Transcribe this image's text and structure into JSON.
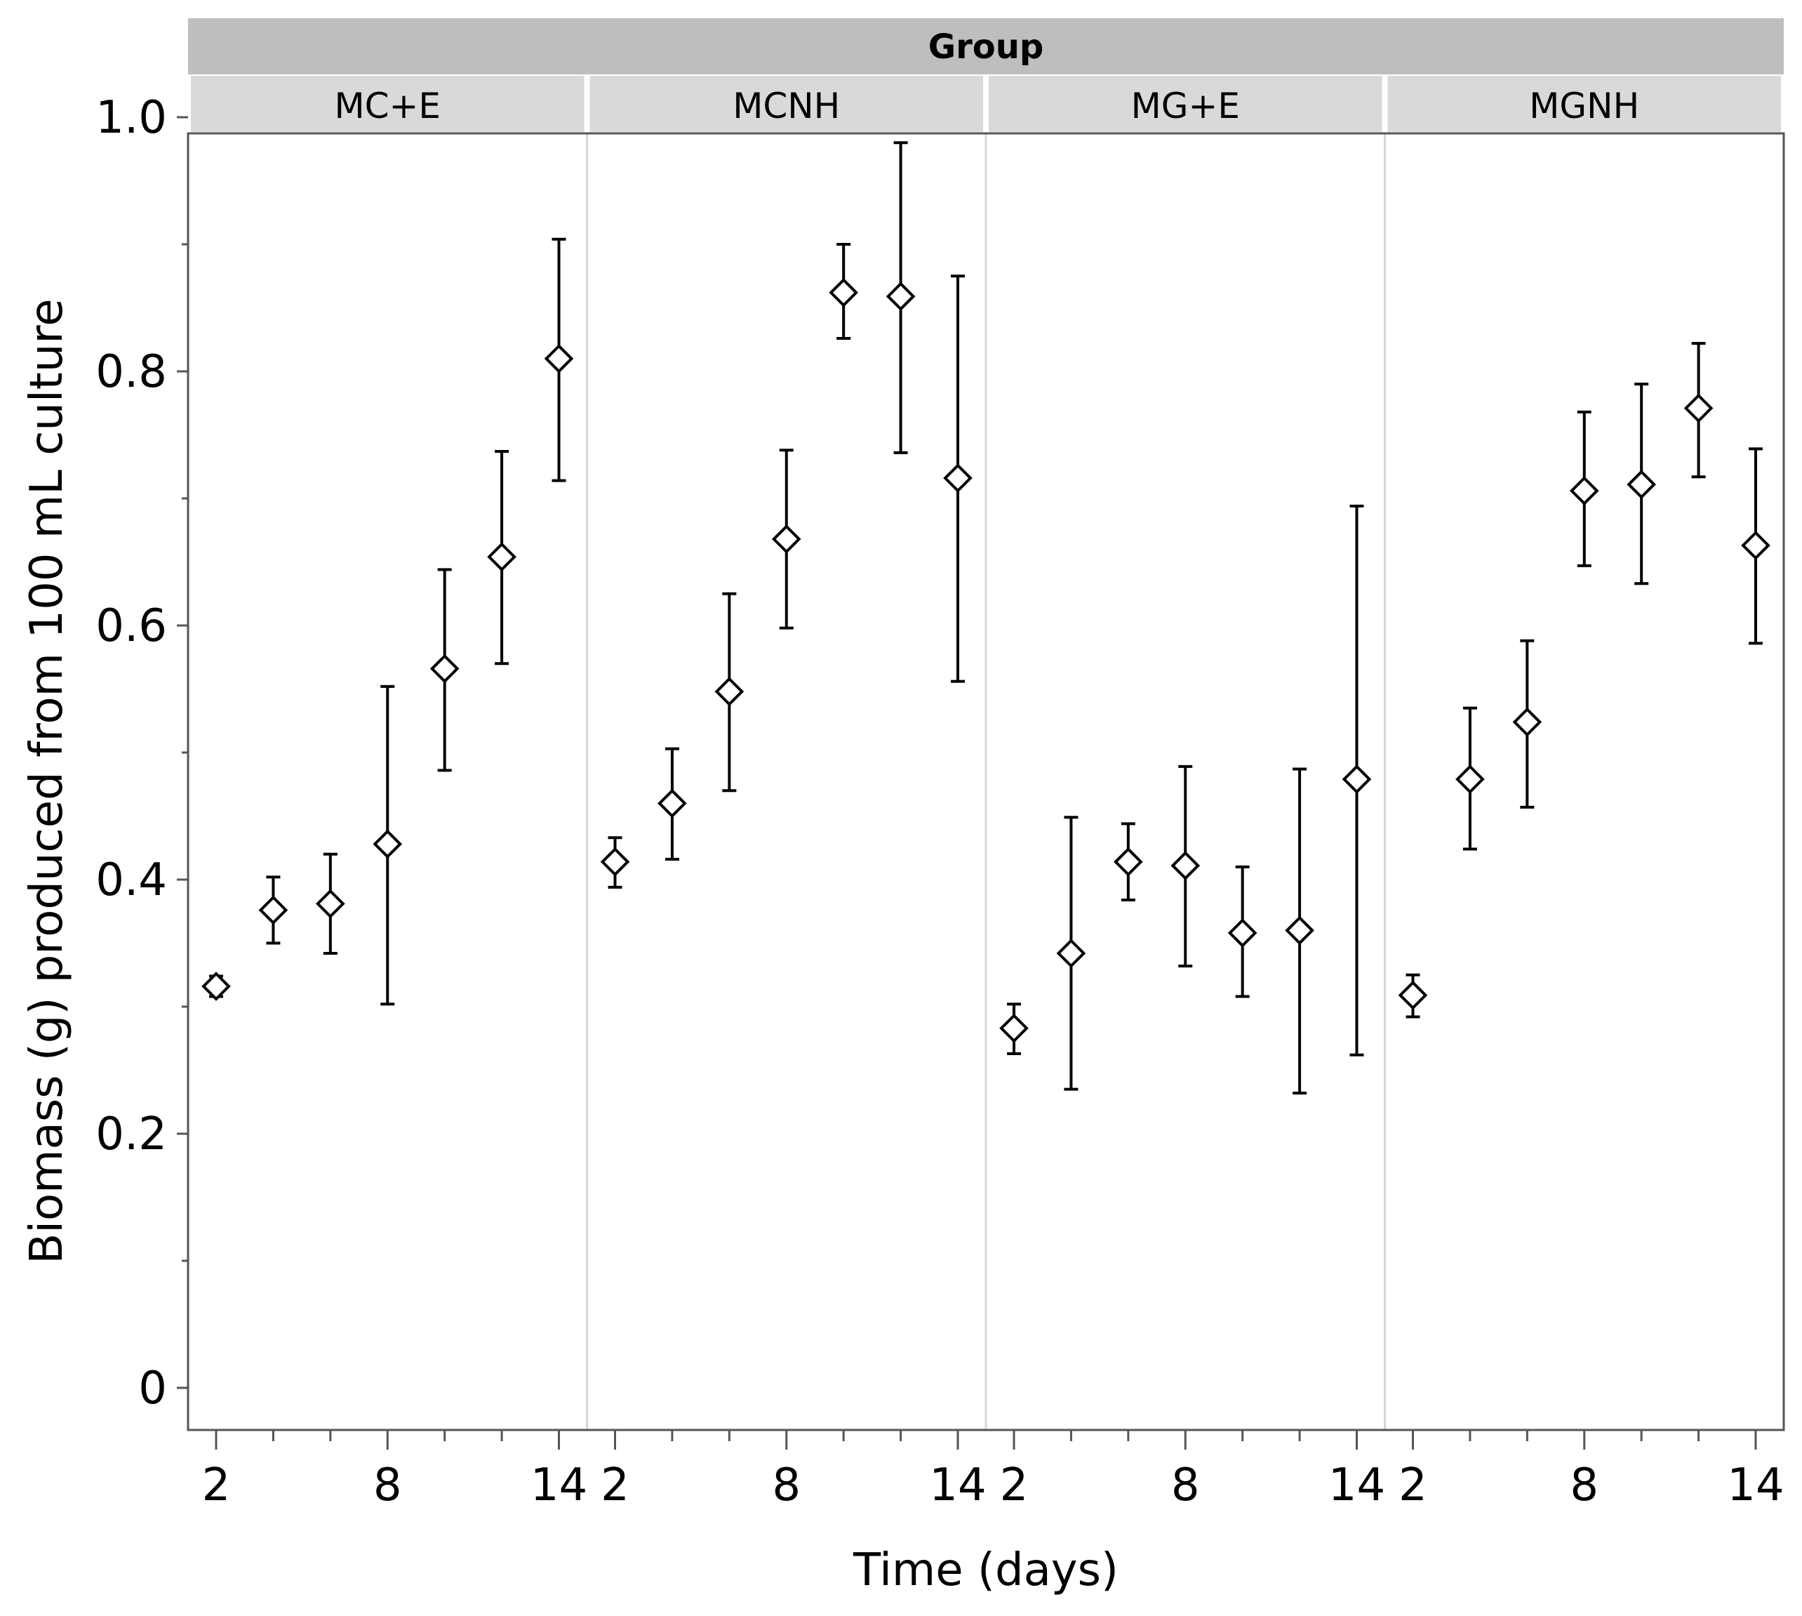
{
  "chart_data": {
    "type": "scatter",
    "title": "Group",
    "xlabel": "Time (days)",
    "ylabel": "Biomass (g) produced from 100 mL culture",
    "ylim": [
      0,
      1.0
    ],
    "yticks": [
      "0",
      "0.2",
      "0.4",
      "0.6",
      "0.8",
      "1.0"
    ],
    "xlim": [
      1.5,
      14.5
    ],
    "xticks": [
      "2",
      "8",
      "14"
    ],
    "x": [
      2,
      4,
      6,
      8,
      10,
      12,
      14
    ],
    "marker": "open-diamond",
    "error_bars": true,
    "panels": [
      {
        "name": "MC+E",
        "mean": [
          0.316,
          0.376,
          0.381,
          0.428,
          0.566,
          0.654,
          0.81
        ],
        "lower": [
          0.308,
          0.35,
          0.342,
          0.302,
          0.486,
          0.57,
          0.714
        ],
        "upper": [
          0.324,
          0.402,
          0.42,
          0.552,
          0.644,
          0.737,
          0.904
        ]
      },
      {
        "name": "MCNH",
        "mean": [
          0.414,
          0.46,
          0.548,
          0.668,
          0.862,
          0.859,
          0.716
        ],
        "lower": [
          0.394,
          0.416,
          0.47,
          0.598,
          0.826,
          0.736,
          0.556
        ],
        "upper": [
          0.433,
          0.503,
          0.625,
          0.738,
          0.9,
          0.98,
          0.875
        ]
      },
      {
        "name": "MG+E",
        "mean": [
          0.283,
          0.342,
          0.414,
          0.411,
          0.358,
          0.36,
          0.479
        ],
        "lower": [
          0.263,
          0.235,
          0.384,
          0.332,
          0.308,
          0.232,
          0.262
        ],
        "upper": [
          0.302,
          0.449,
          0.444,
          0.489,
          0.41,
          0.487,
          0.694
        ]
      },
      {
        "name": "MGNH",
        "mean": [
          0.309,
          0.479,
          0.524,
          0.706,
          0.711,
          0.771,
          0.663
        ],
        "lower": [
          0.292,
          0.424,
          0.457,
          0.647,
          0.633,
          0.717,
          0.586
        ],
        "upper": [
          0.325,
          0.535,
          0.588,
          0.768,
          0.79,
          0.822,
          0.739
        ]
      }
    ]
  },
  "colors": {
    "header_dark": "#bebebe",
    "header_light": "#d9d9d9",
    "panel_divider": "#d6d6d6",
    "axis": "#555555",
    "marker": "#000000"
  }
}
